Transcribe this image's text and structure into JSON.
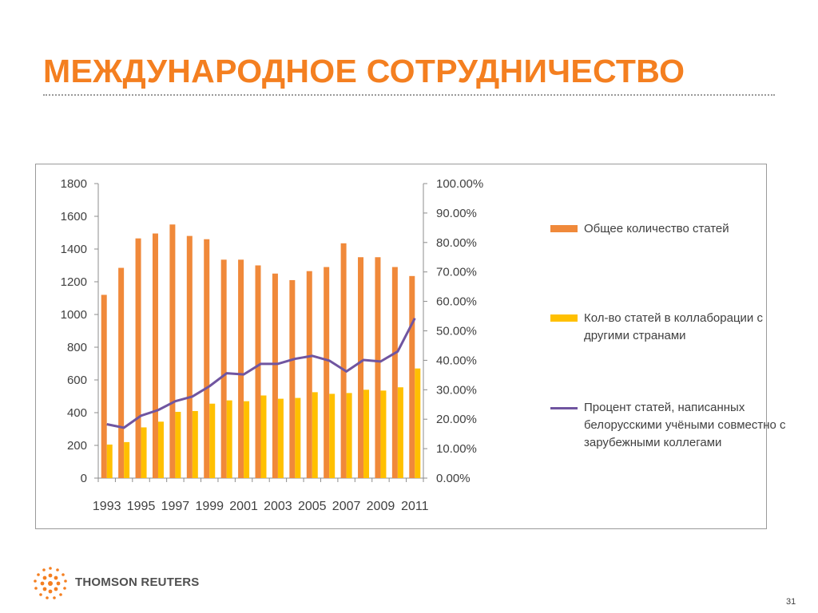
{
  "slide": {
    "title": "МЕЖДУНАРОДНОЕ СОТРУДНИЧЕСТВО",
    "page_number": "31",
    "brand": "THOMSON REUTERS",
    "colors": {
      "accent": "#f47f20"
    }
  },
  "chart_data": {
    "type": "bar",
    "title": "",
    "xlabel": "",
    "ylabel": "",
    "ylim": [
      0,
      1800
    ],
    "y2lim": [
      0,
      1
    ],
    "yticks": [
      "0",
      "200",
      "400",
      "600",
      "800",
      "1000",
      "1200",
      "1400",
      "1600",
      "1800"
    ],
    "y2ticks": [
      "0.00%",
      "10.00%",
      "20.00%",
      "30.00%",
      "40.00%",
      "50.00%",
      "60.00%",
      "70.00%",
      "80.00%",
      "90.00%",
      "100.00%"
    ],
    "categories": [
      "1993",
      "1994",
      "1995",
      "1996",
      "1997",
      "1998",
      "1999",
      "2000",
      "2001",
      "2002",
      "2003",
      "2004",
      "2005",
      "2006",
      "2007",
      "2008",
      "2009",
      "2010",
      "2011"
    ],
    "x_tick_labels": [
      "1993",
      "",
      "1995",
      "",
      "1997",
      "",
      "1999",
      "",
      "2001",
      "",
      "2003",
      "",
      "2005",
      "",
      "2007",
      "",
      "2009",
      "",
      "2011"
    ],
    "grid": false,
    "legend_position": "right",
    "series": [
      {
        "name": "Общее количество статей",
        "type": "bar",
        "axis": "left",
        "color": "#f0893a",
        "values": [
          1120,
          1285,
          1465,
          1495,
          1550,
          1480,
          1460,
          1335,
          1335,
          1300,
          1250,
          1210,
          1265,
          1290,
          1435,
          1350,
          1350,
          1290,
          1235
        ]
      },
      {
        "name": "Кол-во статей в коллаборации с другими странами",
        "type": "bar",
        "axis": "left",
        "color": "#ffc000",
        "values": [
          205,
          220,
          310,
          345,
          405,
          410,
          455,
          475,
          470,
          505,
          485,
          490,
          525,
          515,
          520,
          540,
          535,
          555,
          670
        ]
      },
      {
        "name": "Процент статей, написанных белорусскими учёными совместно с зарубежными коллегами",
        "type": "line",
        "axis": "right",
        "color": "#7055a0",
        "values": [
          0.183,
          0.171,
          0.212,
          0.231,
          0.261,
          0.277,
          0.312,
          0.356,
          0.352,
          0.388,
          0.388,
          0.405,
          0.415,
          0.399,
          0.362,
          0.401,
          0.396,
          0.43,
          0.543
        ]
      }
    ]
  }
}
